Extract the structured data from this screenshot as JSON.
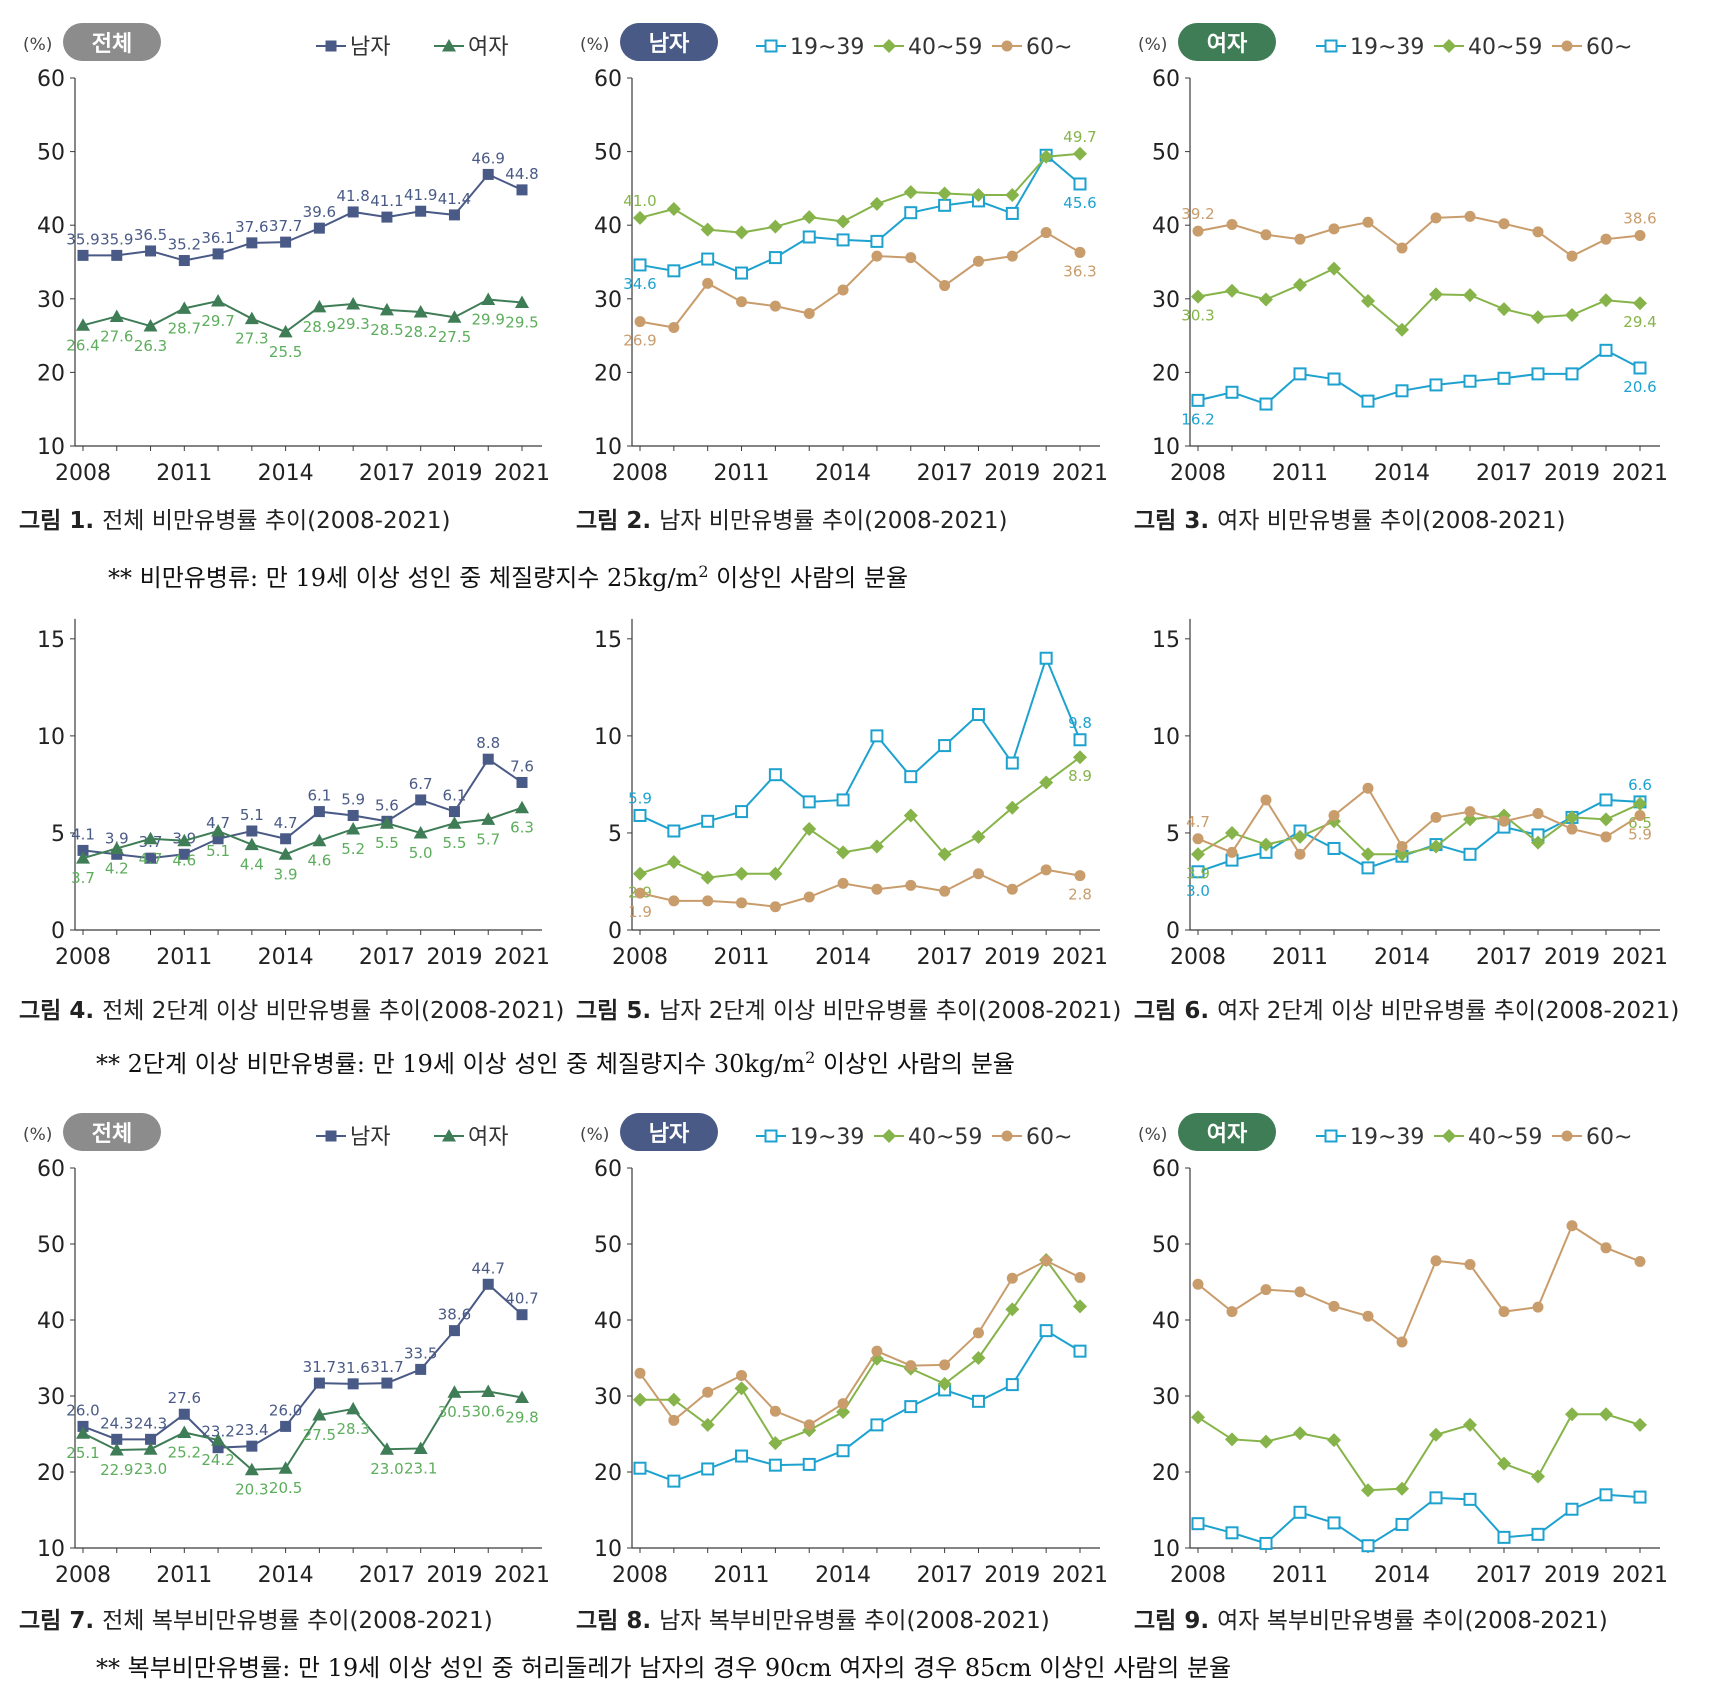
{
  "years": [
    2008,
    2009,
    2010,
    2011,
    2012,
    2013,
    2014,
    2015,
    2016,
    2017,
    2018,
    2019,
    2020,
    2021
  ],
  "x_tick_labels": [
    "2008",
    "2011",
    "2014",
    "2017",
    "2019",
    "2021"
  ],
  "x_tick_years": [
    2008,
    2011,
    2014,
    2017,
    2019,
    2021
  ],
  "unit_label": "(%)",
  "colors": {
    "male": "#4a5a86",
    "female": "#3f7d57",
    "female_label": "#5cad5c",
    "age1939": "#1da2cf",
    "age4059": "#86b44a",
    "age60": "#c99c6c",
    "axis": "#3a3a3a",
    "badge_total": "#8c8c8c",
    "badge_male": "#4a5a86",
    "badge_female": "#3f7d57"
  },
  "badges": {
    "total": "전체",
    "male": "남자",
    "female": "여자"
  },
  "legend": {
    "male": "남자",
    "female": "여자",
    "age1939": "19~39",
    "age4059": "40~59",
    "age60": "60~"
  },
  "notes": {
    "note1_pre": "** 비만유병류: 만 19세 이상 성인 중 체질량지수 25kg/m",
    "note1_sup": "2",
    "note1_post": " 이상인 사람의 분율",
    "note2_pre": "** 2단계 이상 비만유병률: 만 19세 이상 성인 중 체질량지수 30kg/m",
    "note2_sup": "2",
    "note2_post": " 이상인 사람의 분율",
    "note3": "** 복부비만유병률: 만 19세 이상 성인 중 허리둘레가 남자의 경우 90cm 여자의 경우 85cm 이상인 사람의 분율"
  },
  "chart_data": [
    {
      "type": "line",
      "figure": "그림 1.",
      "caption": "전체 비만유병률 추이(2008-2021)",
      "ylim": [
        10,
        60
      ],
      "yticks": [
        10,
        20,
        30,
        40,
        50,
        60
      ],
      "badge": "total",
      "legend": [
        "male",
        "female"
      ],
      "series": [
        {
          "name": "남자",
          "key": "male",
          "marker": "square-filled",
          "values": [
            35.9,
            35.9,
            36.5,
            35.2,
            36.1,
            37.6,
            37.7,
            39.6,
            41.8,
            41.1,
            41.9,
            41.4,
            46.9,
            44.8
          ],
          "labels": [
            "35.9",
            "35.9",
            "36.5",
            "35.2",
            "36.1",
            "37.6",
            "37.7",
            "39.6",
            "41.8",
            "41.1",
            "41.9",
            "41.4",
            "46.9",
            "44.8"
          ]
        },
        {
          "name": "여자",
          "key": "female",
          "marker": "triangle",
          "values": [
            26.4,
            27.6,
            26.3,
            28.7,
            29.7,
            27.3,
            25.5,
            28.9,
            29.3,
            28.5,
            28.2,
            27.5,
            29.9,
            29.5
          ],
          "labels": [
            "26.4",
            "27.6",
            "26.3",
            "28.7",
            "29.7",
            "27.3",
            "25.5",
            "28.9",
            "29.3",
            "28.5",
            "28.2",
            "27.5",
            "29.9",
            "29.5"
          ]
        }
      ]
    },
    {
      "type": "line",
      "figure": "그림 2.",
      "caption": "남자 비만유병률 추이(2008-2021)",
      "ylim": [
        10,
        60
      ],
      "yticks": [
        10,
        20,
        30,
        40,
        50,
        60
      ],
      "badge": "male",
      "legend": [
        "age1939",
        "age4059",
        "age60"
      ],
      "series": [
        {
          "name": "19~39",
          "key": "age1939",
          "marker": "square-open",
          "values": [
            34.6,
            33.8,
            35.4,
            33.5,
            35.6,
            38.4,
            38.0,
            37.8,
            41.7,
            42.7,
            43.3,
            41.6,
            49.5,
            45.6
          ],
          "labels": {
            "0": "34.6",
            "13": "45.6"
          }
        },
        {
          "name": "40~59",
          "key": "age4059",
          "marker": "diamond",
          "values": [
            41.0,
            42.2,
            39.4,
            39.0,
            39.8,
            41.1,
            40.5,
            42.9,
            44.5,
            44.3,
            44.1,
            44.1,
            49.3,
            49.7
          ],
          "labels": {
            "0": "41.0",
            "13": "49.7"
          }
        },
        {
          "name": "60~",
          "key": "age60",
          "marker": "circle",
          "values": [
            26.9,
            26.1,
            32.1,
            29.6,
            29.0,
            28.0,
            31.2,
            35.8,
            35.6,
            31.8,
            35.1,
            35.8,
            39.0,
            36.3
          ],
          "labels": {
            "0": "26.9",
            "13": "36.3"
          }
        }
      ]
    },
    {
      "type": "line",
      "figure": "그림 3.",
      "caption": "여자 비만유병률 추이(2008-2021)",
      "ylim": [
        10,
        60
      ],
      "yticks": [
        10,
        20,
        30,
        40,
        50,
        60
      ],
      "badge": "female",
      "legend": [
        "age1939",
        "age4059",
        "age60"
      ],
      "series": [
        {
          "name": "19~39",
          "key": "age1939",
          "marker": "square-open",
          "values": [
            16.2,
            17.3,
            15.7,
            19.8,
            19.1,
            16.1,
            17.5,
            18.3,
            18.8,
            19.2,
            19.8,
            19.8,
            23.0,
            20.6
          ],
          "labels": {
            "0": "16.2",
            "13": "20.6"
          }
        },
        {
          "name": "40~59",
          "key": "age4059",
          "marker": "diamond",
          "values": [
            30.3,
            31.1,
            29.9,
            31.9,
            34.1,
            29.7,
            25.8,
            30.6,
            30.5,
            28.6,
            27.5,
            27.8,
            29.8,
            29.4
          ],
          "labels": {
            "0": "30.3",
            "13": "29.4"
          }
        },
        {
          "name": "60~",
          "key": "age60",
          "marker": "circle",
          "values": [
            39.2,
            40.1,
            38.7,
            38.1,
            39.5,
            40.4,
            36.9,
            41.0,
            41.2,
            40.2,
            39.1,
            35.8,
            38.1,
            38.6
          ],
          "labels": {
            "0": "39.2",
            "13": "38.6"
          }
        }
      ]
    },
    {
      "type": "line",
      "figure": "그림 4.",
      "caption": "전체 2단계 이상 비만유병률 추이(2008-2021)",
      "ylim": [
        0,
        17
      ],
      "yticks": [
        0,
        5,
        10,
        15
      ],
      "badge": null,
      "legend": [],
      "series": [
        {
          "name": "남자",
          "key": "male",
          "marker": "square-filled",
          "values": [
            4.1,
            3.9,
            3.7,
            3.9,
            4.7,
            5.1,
            4.7,
            6.1,
            5.9,
            5.6,
            6.7,
            6.1,
            8.8,
            7.6
          ],
          "labels": [
            "4.1",
            "3.9",
            "3.7",
            "3.9",
            "4.7",
            "5.1",
            "4.7",
            "6.1",
            "5.9",
            "5.6",
            "6.7",
            "6.1",
            "8.8",
            "7.6"
          ]
        },
        {
          "name": "여자",
          "key": "female",
          "marker": "triangle",
          "values": [
            3.7,
            4.2,
            4.7,
            4.6,
            5.1,
            4.4,
            3.9,
            4.6,
            5.2,
            5.5,
            5.0,
            5.5,
            5.7,
            6.3
          ],
          "labels": [
            "3.7",
            "4.2",
            "4.7",
            "4.6",
            "5.1",
            "4.4",
            "3.9",
            "4.6",
            "5.2",
            "5.5",
            "5.0",
            "5.5",
            "5.7",
            "6.3"
          ]
        }
      ]
    },
    {
      "type": "line",
      "figure": "그림 5.",
      "caption": "남자 2단계 이상 비만유병률 추이(2008-2021)",
      "ylim": [
        0,
        17
      ],
      "yticks": [
        0,
        5,
        10,
        15
      ],
      "badge": null,
      "legend": [],
      "series": [
        {
          "name": "19~39",
          "key": "age1939",
          "marker": "square-open",
          "values": [
            5.9,
            5.1,
            5.6,
            6.1,
            8.0,
            6.6,
            6.7,
            10.0,
            7.9,
            9.5,
            11.1,
            8.6,
            14.0,
            9.8
          ],
          "labels": {
            "0": "5.9",
            "13": "9.8"
          }
        },
        {
          "name": "40~59",
          "key": "age4059",
          "marker": "diamond",
          "values": [
            2.9,
            3.5,
            2.7,
            2.9,
            2.9,
            5.2,
            4.0,
            4.3,
            5.9,
            3.9,
            4.8,
            6.3,
            7.6,
            8.9
          ],
          "labels": {
            "0": "2.9",
            "13": "8.9"
          }
        },
        {
          "name": "60~",
          "key": "age60",
          "marker": "circle",
          "values": [
            1.9,
            1.5,
            1.5,
            1.4,
            1.2,
            1.7,
            2.4,
            2.1,
            2.3,
            2.0,
            2.9,
            2.1,
            3.1,
            2.8
          ],
          "labels": {
            "0": "1.9",
            "13": "2.8"
          }
        }
      ]
    },
    {
      "type": "line",
      "figure": "그림 6.",
      "caption": "여자 2단계 이상 비만유병률 추이(2008-2021)",
      "ylim": [
        0,
        17
      ],
      "yticks": [
        0,
        5,
        10,
        15
      ],
      "badge": null,
      "legend": [],
      "series": [
        {
          "name": "19~39",
          "key": "age1939",
          "marker": "square-open",
          "values": [
            3.0,
            3.6,
            4.0,
            5.1,
            4.2,
            3.2,
            3.8,
            4.4,
            3.9,
            5.3,
            4.9,
            5.8,
            6.7,
            6.6
          ],
          "labels": {
            "0": "3.0",
            "13": "6.6"
          }
        },
        {
          "name": "40~59",
          "key": "age4059",
          "marker": "diamond",
          "values": [
            3.9,
            5.0,
            4.4,
            4.8,
            5.6,
            3.9,
            3.9,
            4.3,
            5.7,
            5.9,
            4.5,
            5.8,
            5.7,
            6.5
          ],
          "labels": {
            "0": "3.9",
            "13": "6.5"
          }
        },
        {
          "name": "60~",
          "key": "age60",
          "marker": "circle",
          "values": [
            4.7,
            4.0,
            6.7,
            3.9,
            5.9,
            7.3,
            4.3,
            5.8,
            6.1,
            5.6,
            6.0,
            5.2,
            4.8,
            5.9
          ],
          "labels": {
            "0": "4.7",
            "13": "5.9"
          }
        }
      ]
    },
    {
      "type": "line",
      "figure": "그림 7.",
      "caption": "전체 복부비만유병률 추이(2008-2021)",
      "ylim": [
        10,
        60
      ],
      "yticks": [
        10,
        20,
        30,
        40,
        50,
        60
      ],
      "badge": "total",
      "legend": [
        "male",
        "female"
      ],
      "series": [
        {
          "name": "남자",
          "key": "male",
          "marker": "square-filled",
          "values": [
            26.0,
            24.3,
            24.3,
            27.6,
            23.2,
            23.4,
            26.0,
            31.7,
            31.6,
            31.7,
            33.5,
            38.6,
            44.7,
            40.7
          ],
          "labels": [
            "26.0",
            "24.3",
            "24.3",
            "27.6",
            "23.2",
            "23.4",
            "26.0",
            "31.7",
            "31.6",
            "31.7",
            "33.5",
            "38.6",
            "44.7",
            "40.7"
          ]
        },
        {
          "name": "여자",
          "key": "female",
          "marker": "triangle",
          "values": [
            25.1,
            22.9,
            23.0,
            25.2,
            24.2,
            20.3,
            20.5,
            27.5,
            28.3,
            23.0,
            23.1,
            30.5,
            30.6,
            29.8
          ],
          "labels": [
            "25.1",
            "22.9",
            "23.0",
            "25.2",
            "24.2",
            "20.3",
            "20.5",
            "27.5",
            "28.3",
            "23.0",
            "23.1",
            "30.5",
            "30.6",
            "29.8"
          ]
        }
      ]
    },
    {
      "type": "line",
      "figure": "그림 8.",
      "caption": "남자 복부비만유병률 추이(2008-2021)",
      "ylim": [
        10,
        60
      ],
      "yticks": [
        10,
        20,
        30,
        40,
        50,
        60
      ],
      "badge": "male",
      "legend": [
        "age1939",
        "age4059",
        "age60"
      ],
      "series": [
        {
          "name": "19~39",
          "key": "age1939",
          "marker": "square-open",
          "values": [
            20.5,
            18.8,
            20.4,
            22.1,
            20.9,
            21.0,
            22.8,
            26.2,
            28.6,
            30.8,
            29.3,
            31.5,
            38.6,
            35.9
          ],
          "labels": {}
        },
        {
          "name": "40~59",
          "key": "age4059",
          "marker": "diamond",
          "values": [
            29.5,
            29.5,
            26.2,
            31.0,
            23.8,
            25.5,
            27.9,
            34.9,
            33.6,
            31.6,
            35.0,
            41.4,
            47.9,
            41.8
          ],
          "labels": {}
        },
        {
          "name": "60~",
          "key": "age60",
          "marker": "circle",
          "values": [
            33.0,
            26.8,
            30.5,
            32.7,
            28.0,
            26.2,
            29.0,
            35.9,
            34.0,
            34.1,
            38.3,
            45.5,
            47.8,
            45.6
          ],
          "labels": {}
        }
      ]
    },
    {
      "type": "line",
      "figure": "그림 9.",
      "caption": "여자 복부비만유병률 추이(2008-2021)",
      "ylim": [
        10,
        60
      ],
      "yticks": [
        10,
        20,
        30,
        40,
        50,
        60
      ],
      "badge": "female",
      "legend": [
        "age1939",
        "age4059",
        "age60"
      ],
      "series": [
        {
          "name": "19~39",
          "key": "age1939",
          "marker": "square-open",
          "values": [
            13.2,
            12.0,
            10.6,
            14.7,
            13.3,
            10.3,
            13.1,
            16.6,
            16.4,
            11.4,
            11.8,
            15.1,
            17.0,
            16.7
          ],
          "labels": {}
        },
        {
          "name": "40~59",
          "key": "age4059",
          "marker": "diamond",
          "values": [
            27.2,
            24.3,
            24.0,
            25.1,
            24.2,
            17.6,
            17.8,
            24.9,
            26.2,
            21.1,
            19.4,
            27.6,
            27.6,
            26.2
          ],
          "labels": {}
        },
        {
          "name": "60~",
          "key": "age60",
          "marker": "circle",
          "values": [
            44.7,
            41.1,
            44.0,
            43.7,
            41.8,
            40.5,
            37.1,
            47.8,
            47.3,
            41.1,
            41.7,
            52.4,
            49.5,
            47.7
          ],
          "labels": {}
        }
      ]
    }
  ]
}
